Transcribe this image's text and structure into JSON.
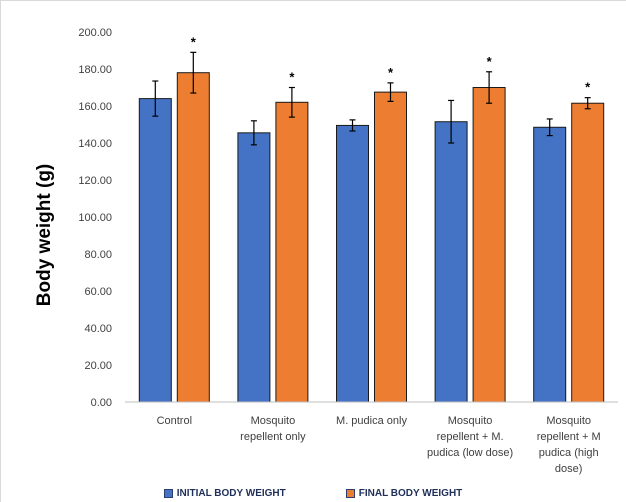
{
  "colors": {
    "initial": "#4472c4",
    "final": "#ed7d31",
    "axis": "#bfbfbf",
    "grid": "#e0e0e0"
  },
  "chart_data": {
    "type": "bar",
    "ylabel": "Body weight (g)",
    "ylim": [
      0,
      200
    ],
    "yticks": [
      "0.00",
      "20.00",
      "40.00",
      "60.00",
      "80.00",
      "100.00",
      "120.00",
      "140.00",
      "160.00",
      "180.00",
      "200.00"
    ],
    "ytick_values": [
      0,
      20,
      40,
      60,
      80,
      100,
      120,
      140,
      160,
      180,
      200
    ],
    "categories": [
      [
        "Control"
      ],
      [
        "Mosquito",
        "repellent only"
      ],
      [
        "M. pudica only"
      ],
      [
        "Mosquito",
        "repellent + M.",
        "pudica (low dose)"
      ],
      [
        "Mosquito",
        "repellent + M",
        "pudica (high",
        "dose)"
      ]
    ],
    "series": [
      {
        "name": "INITIAL BODY WEIGHT",
        "values": [
          164,
          145.5,
          149.5,
          151.5,
          148.5
        ],
        "errors": [
          9.5,
          6.5,
          3,
          11.5,
          4.5
        ],
        "significance": [
          "",
          "",
          "",
          "",
          ""
        ]
      },
      {
        "name": "FINAL BODY WEIGHT",
        "values": [
          178,
          162,
          167.5,
          170,
          161.5
        ],
        "errors": [
          11,
          8,
          5,
          8.5,
          3
        ],
        "significance": [
          "*",
          "*",
          "*",
          "*",
          "*"
        ]
      }
    ],
    "grid": false,
    "legend_position": "bottom"
  }
}
